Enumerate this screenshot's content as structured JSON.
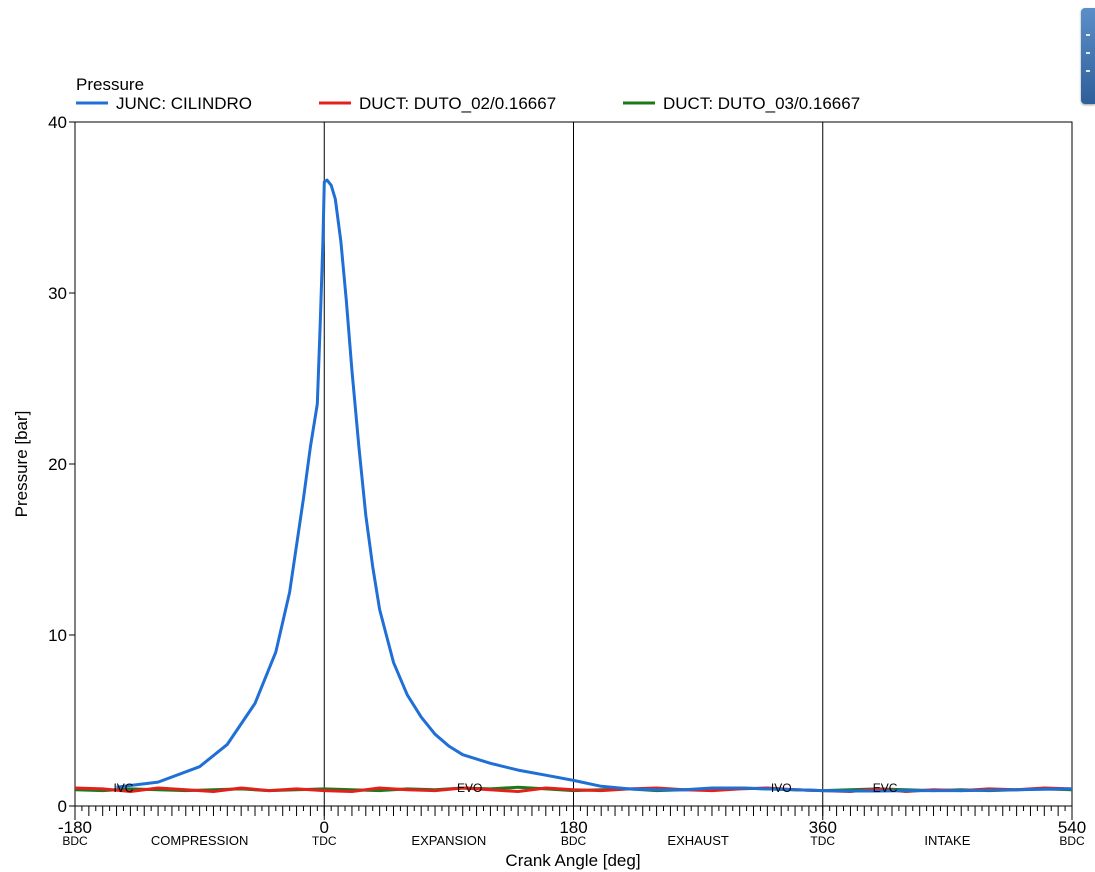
{
  "chart_data": {
    "type": "line",
    "legend_title": "Pressure",
    "legend_placement": "top-left",
    "xlabel": "Crank Angle  [deg]",
    "ylabel": "Pressure  [bar]",
    "xlim": [
      -180,
      540
    ],
    "ylim": [
      0,
      40
    ],
    "grid": false,
    "y_ticks": [
      {
        "value": 0,
        "label": "0"
      },
      {
        "value": 10,
        "label": "10"
      },
      {
        "value": 20,
        "label": "20"
      },
      {
        "value": 30,
        "label": "30"
      },
      {
        "value": 40,
        "label": "40"
      }
    ],
    "x_ticks": [
      {
        "value": -180,
        "label": "-180",
        "sub": "BDC"
      },
      {
        "value": 0,
        "label": "0",
        "sub": "TDC"
      },
      {
        "value": 180,
        "label": "180",
        "sub": "BDC"
      },
      {
        "value": 360,
        "label": "360",
        "sub": "TDC"
      },
      {
        "value": 540,
        "label": "540",
        "sub": "BDC"
      }
    ],
    "stroke_labels": [
      {
        "x": -90,
        "label": "COMPRESSION"
      },
      {
        "x": 90,
        "label": "EXPANSION"
      },
      {
        "x": 270,
        "label": "EXHAUST"
      },
      {
        "x": 450,
        "label": "INTAKE"
      }
    ],
    "vertical_lines": [
      0,
      180,
      360
    ],
    "valve_events": [
      {
        "x": -145,
        "label": "IVC"
      },
      {
        "x": 105,
        "label": "EVO"
      },
      {
        "x": 330,
        "label": "IVO"
      },
      {
        "x": 405,
        "label": "EVC"
      }
    ],
    "series": [
      {
        "name": "JUNC: CILINDRO",
        "color": "#1f6fd6",
        "x": [
          -150,
          -120,
          -90,
          -70,
          -50,
          -35,
          -25,
          -15,
          -10,
          -5,
          -3,
          -1,
          0,
          2,
          5,
          8,
          12,
          16,
          20,
          25,
          30,
          35,
          40,
          50,
          60,
          70,
          80,
          90,
          100,
          120,
          140,
          160,
          180,
          200,
          220,
          240,
          260,
          280,
          300,
          320,
          340,
          360,
          380,
          400,
          420,
          440,
          460,
          480,
          500,
          520,
          540
        ],
        "y": [
          1.1,
          1.4,
          2.3,
          3.6,
          6.0,
          9.0,
          12.5,
          18.0,
          21.0,
          23.5,
          28.0,
          33.0,
          36.5,
          36.6,
          36.3,
          35.5,
          33.0,
          29.5,
          25.5,
          21.0,
          17.0,
          14.0,
          11.5,
          8.4,
          6.5,
          5.2,
          4.2,
          3.5,
          3.0,
          2.5,
          2.1,
          1.8,
          1.5,
          1.15,
          1.0,
          0.95,
          0.95,
          1.05,
          1.05,
          1.0,
          0.95,
          0.9,
          0.88,
          0.88,
          0.9,
          0.9,
          0.9,
          0.92,
          0.95,
          0.98,
          1.0
        ]
      },
      {
        "name": "DUCT: DUTO_02/0.16667",
        "color": "#e3201b",
        "x": [
          -180,
          -160,
          -140,
          -120,
          -100,
          -80,
          -60,
          -40,
          -20,
          0,
          20,
          40,
          60,
          80,
          100,
          120,
          140,
          160,
          180,
          200,
          220,
          240,
          260,
          280,
          300,
          320,
          340,
          360,
          380,
          400,
          420,
          440,
          460,
          480,
          500,
          520,
          540
        ],
        "y": [
          1.05,
          1.0,
          0.85,
          1.05,
          0.95,
          0.85,
          1.05,
          0.9,
          1.0,
          0.9,
          0.85,
          1.05,
          0.95,
          0.9,
          1.05,
          0.95,
          0.85,
          1.05,
          0.95,
          0.9,
          1.0,
          1.05,
          0.95,
          0.9,
          1.0,
          1.05,
          0.95,
          0.9,
          0.85,
          1.0,
          0.85,
          0.95,
          0.9,
          1.0,
          0.95,
          1.05,
          1.0
        ]
      },
      {
        "name": "DUCT: DUTO_03/0.16667",
        "color": "#1a7a1a",
        "x": [
          -180,
          -160,
          -140,
          -120,
          -100,
          -80,
          -60,
          -40,
          -20,
          0,
          20,
          40,
          60,
          80,
          100,
          120,
          140,
          160,
          180,
          200,
          220,
          240,
          260,
          280,
          300,
          320,
          340,
          360,
          380,
          400,
          420,
          440,
          460,
          480,
          500,
          520,
          540
        ],
        "y": [
          0.95,
          0.9,
          1.0,
          0.95,
          0.9,
          0.95,
          1.0,
          0.9,
          0.95,
          1.0,
          0.95,
          0.9,
          1.0,
          0.95,
          1.05,
          1.0,
          1.1,
          1.0,
          0.9,
          0.95,
          1.0,
          0.9,
          0.95,
          1.0,
          1.05,
          1.0,
          0.95,
          0.9,
          0.95,
          1.0,
          0.95,
          0.9,
          0.95,
          0.9,
          0.95,
          1.0,
          0.95
        ]
      }
    ]
  }
}
